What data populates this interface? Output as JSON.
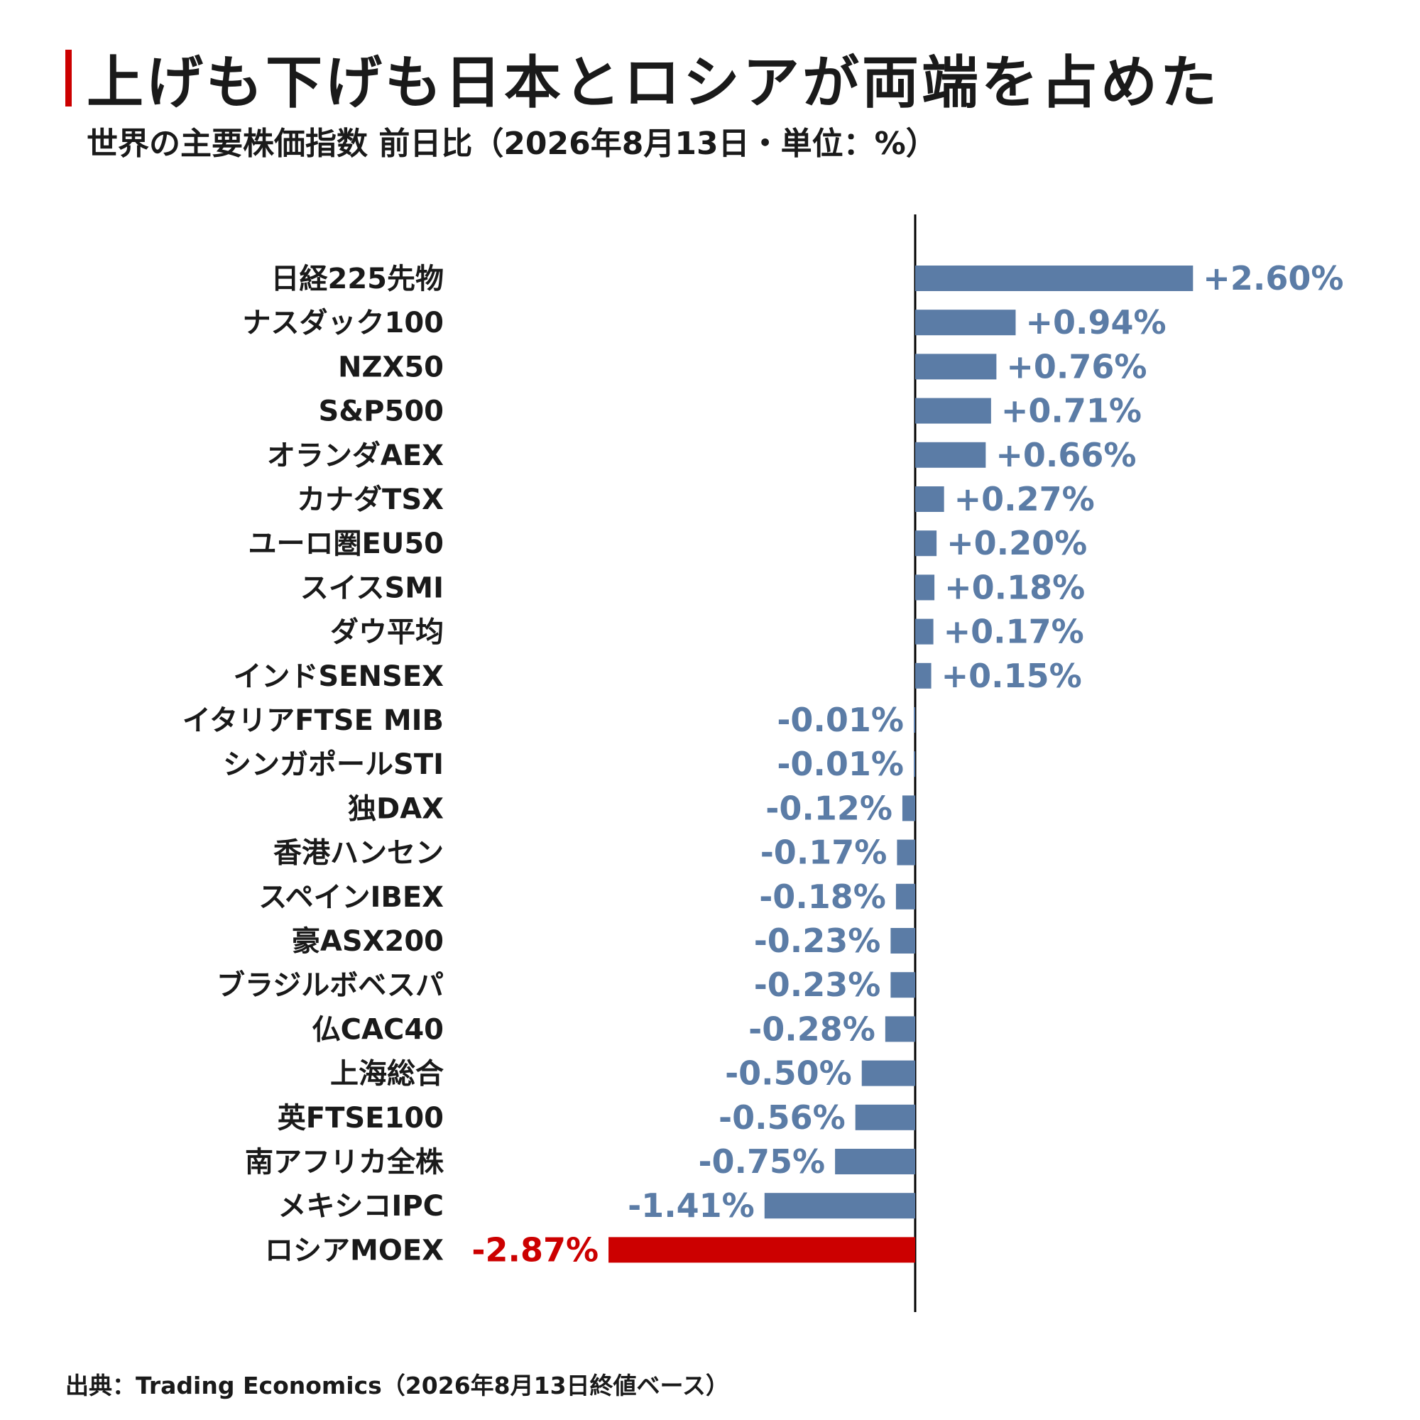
{
  "header": {
    "title": "上げも下げも日本とロシアが両端を占めた",
    "subtitle": "世界の主要株価指数 前日比（2026年8月13日・単位：%）"
  },
  "footer": {
    "source": "出典：Trading Economics（2026年8月13日終値ベース）"
  },
  "colors": {
    "bar": "#5b7ca6",
    "highlight": "#cc0000",
    "title_accent": "#cc0000",
    "axis": "#000000"
  },
  "chart_data": {
    "type": "bar",
    "orientation": "horizontal",
    "title": "上げも下げも日本とロシアが両端を占めた",
    "subtitle": "世界の主要株価指数 前日比（2026年8月13日・単位：%）",
    "categories": [
      "日経225先物",
      "ナスダック100",
      "NZX50",
      "S&P500",
      "オランダAEX",
      "カナダTSX",
      "ユーロ圏EU50",
      "スイスSMI",
      "ダウ平均",
      "インドSENSEX",
      "イタリアFTSE MIB",
      "シンガポールSTI",
      "独DAX",
      "香港ハンセン",
      "スペインIBEX",
      "豪ASX200",
      "ブラジルボベスパ",
      "仏CAC40",
      "上海総合",
      "英FTSE100",
      "南アフリカ全株",
      "メキシコIPC",
      "ロシアMOEX"
    ],
    "values": [
      2.6,
      0.94,
      0.76,
      0.71,
      0.66,
      0.27,
      0.2,
      0.18,
      0.17,
      0.15,
      -0.01,
      -0.01,
      -0.12,
      -0.17,
      -0.18,
      -0.23,
      -0.23,
      -0.28,
      -0.5,
      -0.56,
      -0.75,
      -1.41,
      -2.87
    ],
    "labels": [
      "+2.60%",
      "+0.94%",
      "+0.76%",
      "+0.71%",
      "+0.66%",
      "+0.27%",
      "+0.20%",
      "+0.18%",
      "+0.17%",
      "+0.15%",
      "-0.01%",
      "-0.01%",
      "-0.12%",
      "-0.17%",
      "-0.18%",
      "-0.23%",
      "-0.23%",
      "-0.28%",
      "-0.50%",
      "-0.56%",
      "-0.75%",
      "-1.41%",
      "-2.87%"
    ],
    "highlight": [
      "ロシアMOEX"
    ],
    "xlim": [
      -2.87,
      2.6
    ],
    "grid": false,
    "legend": "none"
  }
}
